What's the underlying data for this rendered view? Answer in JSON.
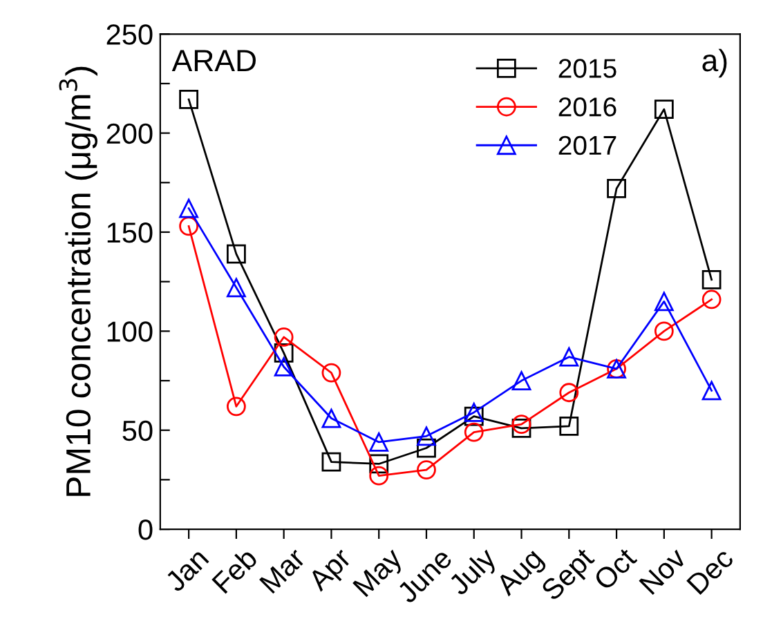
{
  "chart_data": {
    "type": "line",
    "ylabel": "PM10 concentration (μg/m$^{3}$)",
    "categories": [
      "Jan",
      "Feb",
      "Mar",
      "Apr",
      "May",
      "June",
      "July",
      "Aug",
      "Sept",
      "Oct",
      "Nov",
      "Dec"
    ],
    "series": [
      {
        "name": "2015",
        "color": "#000000",
        "marker": "square",
        "values": [
          217,
          139,
          89,
          34,
          33,
          41,
          57,
          51,
          52,
          172,
          212,
          126
        ]
      },
      {
        "name": "2016",
        "color": "#ff0000",
        "marker": "circle",
        "values": [
          153,
          62,
          97,
          79,
          27,
          30,
          49,
          53,
          69,
          81,
          100,
          116
        ]
      },
      {
        "name": "2017",
        "color": "#0000ff",
        "marker": "triangle",
        "values": [
          162,
          122,
          82,
          56,
          44,
          47,
          59,
          75,
          87,
          81,
          115,
          70
        ]
      }
    ],
    "ylim": [
      0,
      250
    ],
    "yticks": [
      0,
      {
        "value": 25,
        "label": null
      },
      50,
      {
        "value": 75,
        "label": null
      },
      100,
      {
        "value": 125,
        "label": null
      },
      150,
      {
        "value": 175,
        "label": null
      },
      200,
      {
        "value": 225,
        "label": null
      },
      250
    ],
    "annotations": [
      "ARAD",
      "a)"
    ],
    "legend": "top right",
    "grid": false
  }
}
